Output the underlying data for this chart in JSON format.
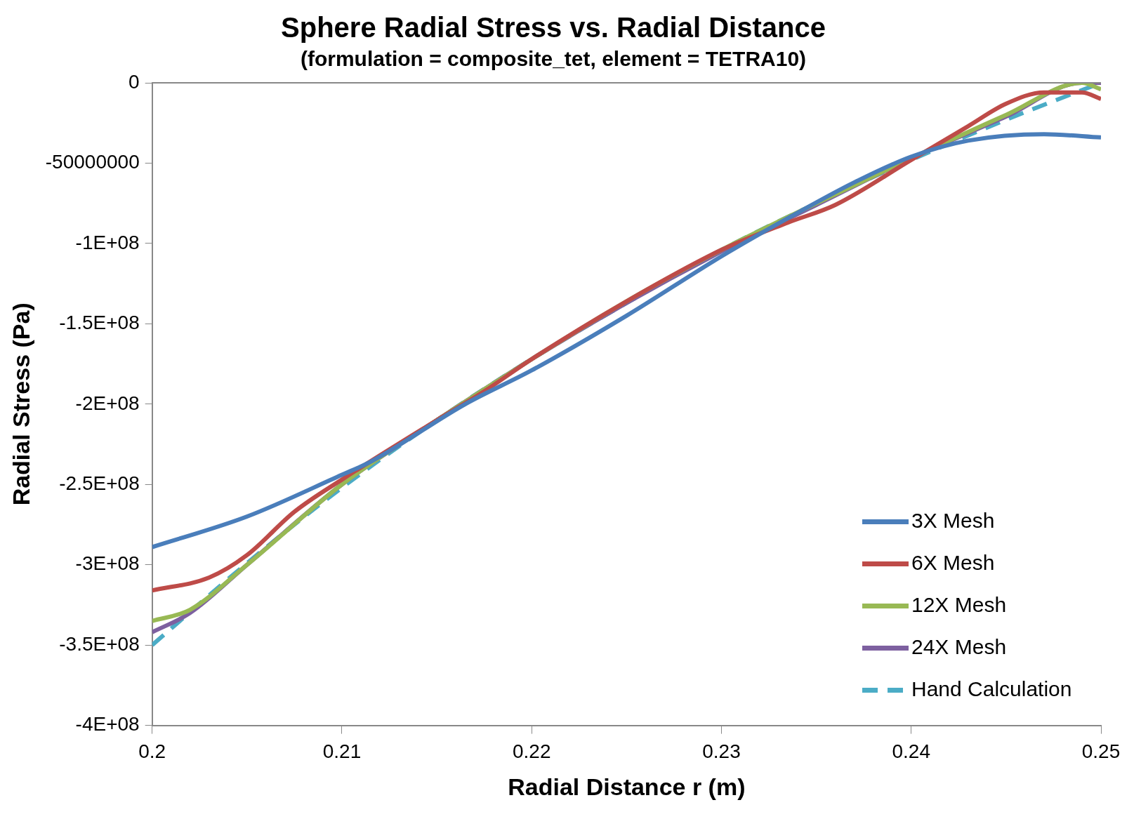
{
  "chart_data": {
    "type": "line",
    "title": "Sphere Radial Stress vs. Radial Distance",
    "subtitle": "(formulation = composite_tet, element = TETRA10)",
    "xlabel": "Radial Distance r (m)",
    "ylabel": "Radial Stress (Pa)",
    "xlim": [
      0.2,
      0.25
    ],
    "xticks": [
      0.2,
      0.21,
      0.22,
      0.23,
      0.24,
      0.25
    ],
    "ylim": [
      -400000000,
      0
    ],
    "yticks": [
      {
        "value": -400000000,
        "label": "-4E+08"
      },
      {
        "value": -350000000,
        "label": "-3.5E+08"
      },
      {
        "value": -300000000,
        "label": "-3E+08"
      },
      {
        "value": -250000000,
        "label": "-2.5E+08"
      },
      {
        "value": -200000000,
        "label": "-2E+08"
      },
      {
        "value": -150000000,
        "label": "-1.5E+08"
      },
      {
        "value": -100000000,
        "label": "-1E+08"
      },
      {
        "value": -50000000,
        "label": "-50000000"
      },
      {
        "value": 0,
        "label": "0"
      }
    ],
    "grid": false,
    "legend": "bottom right",
    "marker": "none",
    "series": [
      {
        "name": "3X Mesh",
        "color": "#4a7ebb",
        "x": [
          0.2,
          0.205,
          0.21,
          0.2115,
          0.2165,
          0.22,
          0.225,
          0.23,
          0.234,
          0.237,
          0.24,
          0.243,
          0.247,
          0.25
        ],
        "values": [
          -289000000,
          -270000000,
          -244000000,
          -236000000,
          -200000000,
          -179000000,
          -145000000,
          -108000000,
          -81000000,
          -62000000,
          -46000000,
          -36000000,
          -32000000,
          -34000000
        ]
      },
      {
        "name": "6X Mesh",
        "color": "#be4b48",
        "x": [
          0.2,
          0.203,
          0.205,
          0.2075,
          0.21,
          0.215,
          0.2175,
          0.22,
          0.225,
          0.23,
          0.2335,
          0.236,
          0.24,
          0.243,
          0.245,
          0.247,
          0.249,
          0.25
        ],
        "values": [
          -316000000,
          -308000000,
          -294000000,
          -267000000,
          -247000000,
          -210000000,
          -192000000,
          -172000000,
          -136000000,
          -104000000,
          -87000000,
          -76000000,
          -48000000,
          -27000000,
          -13000000,
          -6000000,
          -6000000,
          -10000000
        ]
      },
      {
        "name": "12X Mesh",
        "color": "#98b954",
        "x": [
          0.2,
          0.202,
          0.205,
          0.21,
          0.215,
          0.22,
          0.225,
          0.23,
          0.235,
          0.24,
          0.245,
          0.249,
          0.25
        ],
        "values": [
          -335000000,
          -328000000,
          -300000000,
          -250000000,
          -210000000,
          -172000000,
          -136000000,
          -104000000,
          -75000000,
          -47000000,
          -20000000,
          0,
          -4000000
        ]
      },
      {
        "name": "24X Mesh",
        "color": "#7d60a0",
        "x": [
          0.2,
          0.202,
          0.205,
          0.21,
          0.215,
          0.22,
          0.225,
          0.23,
          0.235,
          0.24,
          0.245,
          0.249,
          0.25
        ],
        "values": [
          -342000000,
          -330000000,
          -300000000,
          -250000000,
          -210000000,
          -172000000,
          -137000000,
          -105000000,
          -76000000,
          -47000000,
          -21000000,
          0,
          0
        ]
      },
      {
        "name": "Hand Calculation",
        "color": "#4bacc6",
        "line_style": "dashed",
        "x": [
          0.2,
          0.205,
          0.21,
          0.215,
          0.22,
          0.225,
          0.23,
          0.235,
          0.24,
          0.245,
          0.25
        ],
        "values": [
          -350000000,
          -299000000,
          -252000000,
          -210000000,
          -172000000,
          -137000000,
          -104000000,
          -75000000,
          -48000000,
          -23000000,
          0
        ]
      }
    ]
  }
}
